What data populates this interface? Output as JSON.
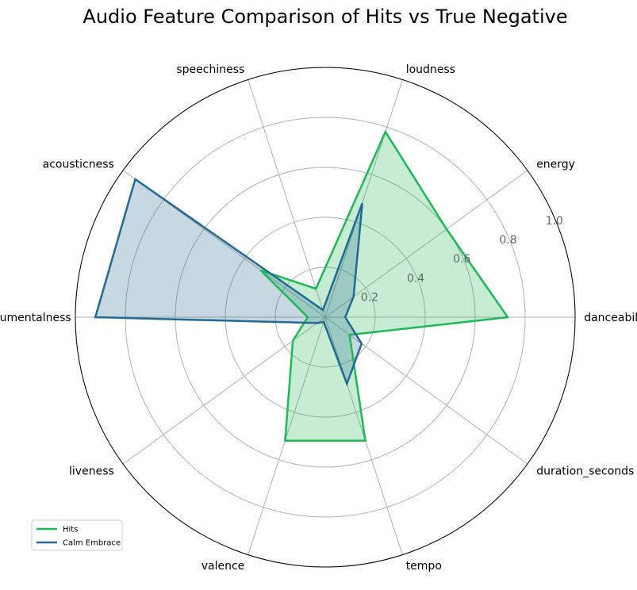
{
  "chart_data": {
    "type": "radar",
    "title": "Audio Feature Comparison of Hits vs True Negative",
    "categories": [
      "danceability",
      "energy",
      "loudness",
      "speechiness",
      "acousticness",
      "instrumentalness",
      "liveness",
      "valence",
      "tempo",
      "duration_seconds"
    ],
    "series": [
      {
        "name": "Hits",
        "color": "#1db954",
        "fill": "#1db954",
        "values": [
          0.73,
          0.6,
          0.78,
          0.12,
          0.32,
          0.07,
          0.16,
          0.52,
          0.52,
          0.12
        ]
      },
      {
        "name": "Calm Embrace",
        "color": "#236a93",
        "fill": "#1f6390",
        "values": [
          0.08,
          0.14,
          0.48,
          0.03,
          0.94,
          0.92,
          0.04,
          0.02,
          0.28,
          0.18
        ]
      }
    ],
    "rlim": [
      0,
      1.0
    ],
    "rticks": [
      "0.2",
      "0.4",
      "0.6",
      "0.8",
      "1.0"
    ],
    "grid": true,
    "legend_position": "lower-left"
  }
}
